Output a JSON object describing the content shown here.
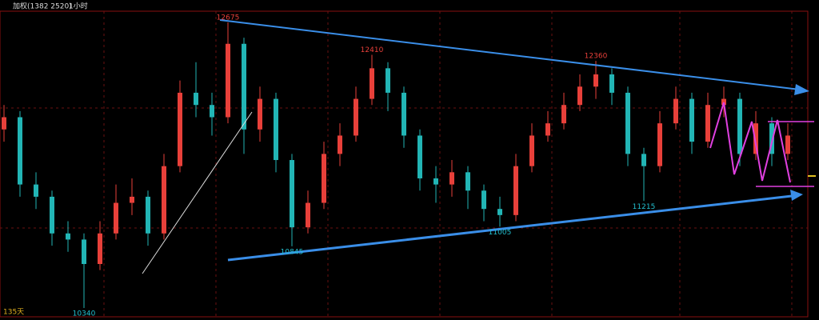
{
  "chart_data": {
    "type": "candlestick",
    "title": "加权(1382 2520)",
    "period": "1小时",
    "footer": "135天",
    "up_color": "#e8403a",
    "down_color": "#22b5b5",
    "ylim": [
      10275,
      12760
    ],
    "categories": [
      null,
      null,
      null,
      null,
      null,
      null,
      null,
      null,
      null,
      null,
      null,
      null,
      null,
      null,
      null,
      null,
      null,
      null,
      null,
      null,
      null,
      null,
      null,
      null,
      null,
      null,
      null,
      null,
      null,
      null,
      null,
      null,
      null,
      null,
      null,
      null,
      null,
      null,
      null,
      null,
      null,
      null,
      null,
      null,
      null,
      null,
      null,
      null,
      null,
      null
    ],
    "open": [
      11800,
      11900,
      11350,
      11250,
      10950,
      10900,
      10700,
      10950,
      11200,
      11250,
      10950,
      11500,
      12100,
      12000,
      11900,
      12500,
      11800,
      12050,
      11550,
      11000,
      11200,
      11600,
      11750,
      12050,
      12300,
      12100,
      11750,
      11400,
      11350,
      11450,
      11300,
      11150,
      11100,
      11500,
      11750,
      11850,
      12000,
      12150,
      12250,
      12100,
      11600,
      11500,
      11850,
      12050,
      11700,
      12000,
      12050,
      11600,
      11850,
      11600
    ],
    "high": [
      12000,
      11950,
      11450,
      11300,
      11050,
      10950,
      11050,
      11350,
      11400,
      11300,
      11600,
      12200,
      12350,
      12100,
      12675,
      12550,
      12150,
      12100,
      11600,
      11300,
      11700,
      11850,
      12150,
      12410,
      12350,
      12150,
      11800,
      11500,
      11550,
      11500,
      11350,
      11250,
      11600,
      11850,
      11950,
      12100,
      12250,
      12360,
      12300,
      12150,
      11650,
      11950,
      12150,
      12100,
      12100,
      12150,
      12100,
      11950,
      11900,
      11850
    ],
    "low": [
      11700,
      11250,
      11150,
      10850,
      10800,
      10340,
      10650,
      10900,
      11100,
      10850,
      10900,
      11450,
      11900,
      11750,
      11850,
      11600,
      11700,
      11450,
      10845,
      10950,
      11150,
      11500,
      11700,
      12000,
      11950,
      11650,
      11300,
      11200,
      11250,
      11150,
      11050,
      11005,
      11050,
      11450,
      11700,
      11800,
      11950,
      12050,
      12000,
      11500,
      11215,
      11450,
      11800,
      11600,
      11650,
      11900,
      11500,
      11550,
      11500,
      11550
    ],
    "close": [
      11900,
      11350,
      11250,
      10950,
      10900,
      10700,
      10950,
      11200,
      11250,
      10950,
      11500,
      12100,
      12000,
      11900,
      12500,
      11800,
      12050,
      11550,
      11000,
      11200,
      11600,
      11750,
      12050,
      12300,
      12100,
      11750,
      11400,
      11350,
      11450,
      11300,
      11150,
      11100,
      11500,
      11750,
      11850,
      12000,
      12150,
      12250,
      12100,
      11600,
      11500,
      11850,
      12050,
      11700,
      12000,
      12050,
      11600,
      11850,
      11600,
      11750
    ]
  }
}
